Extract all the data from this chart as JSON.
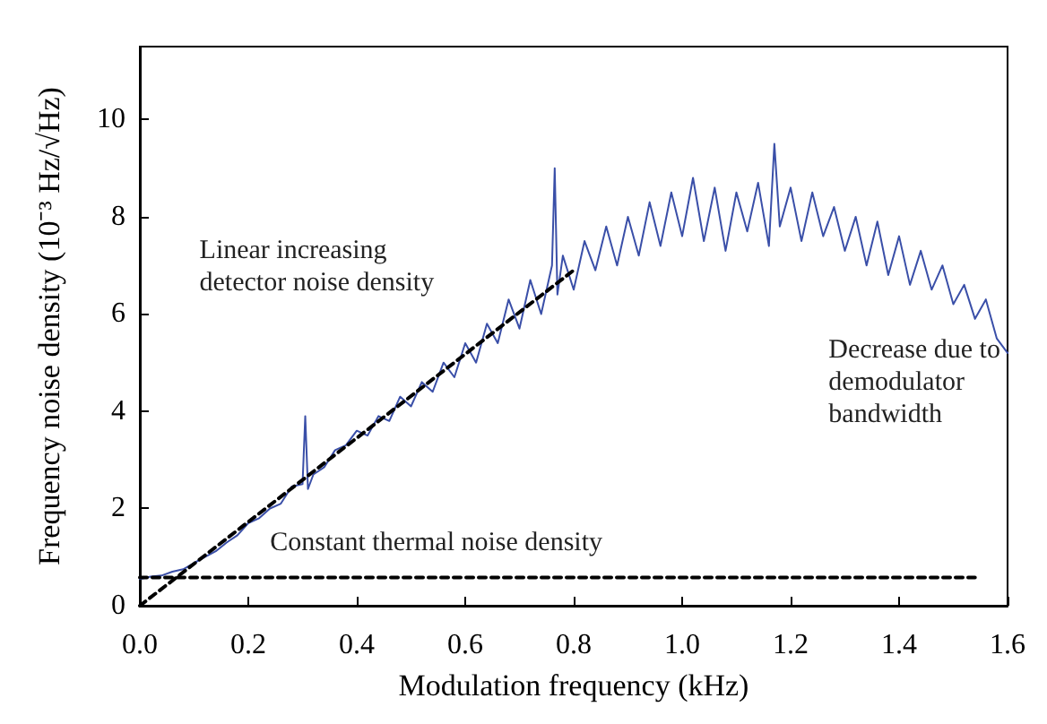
{
  "chart_data": {
    "type": "line",
    "xlabel": "Modulation frequency (kHz)",
    "ylabel": "Frequency noise density (10⁻³ Hz/√Hz)",
    "xlim": [
      0,
      1.6
    ],
    "xticks": [
      {
        "value": 0,
        "label": "0.0"
      },
      0.2,
      0.4,
      0.6,
      0.8,
      {
        "value": 1,
        "label": "1.0"
      },
      1.2,
      1.4,
      1.6
    ],
    "ylim": [
      0,
      11.5
    ],
    "yticks": [
      0,
      2,
      4,
      6,
      8,
      10
    ],
    "grid": false,
    "marker": "none",
    "series": [
      {
        "color": "#3a4fa8",
        "line_style": "solid",
        "x": [
          0,
          0.02,
          0.04,
          0.06,
          0.08,
          0.1,
          0.12,
          0.14,
          0.16,
          0.18,
          0.2,
          0.22,
          0.24,
          0.26,
          0.28,
          0.3,
          0.305,
          0.31,
          0.32,
          0.34,
          0.36,
          0.38,
          0.4,
          0.42,
          0.44,
          0.46,
          0.48,
          0.5,
          0.52,
          0.54,
          0.56,
          0.58,
          0.6,
          0.62,
          0.64,
          0.66,
          0.68,
          0.7,
          0.72,
          0.74,
          0.76,
          0.765,
          0.77,
          0.78,
          0.8,
          0.82,
          0.84,
          0.86,
          0.88,
          0.9,
          0.92,
          0.94,
          0.96,
          0.98,
          1,
          1.02,
          1.04,
          1.06,
          1.08,
          1.1,
          1.12,
          1.14,
          1.16,
          1.17,
          1.18,
          1.2,
          1.22,
          1.24,
          1.26,
          1.28,
          1.3,
          1.32,
          1.34,
          1.36,
          1.38,
          1.4,
          1.42,
          1.44,
          1.46,
          1.48,
          1.5,
          1.52,
          1.54,
          1.56,
          1.58,
          1.6
        ],
        "values": [
          0.55,
          0.6,
          0.62,
          0.7,
          0.75,
          0.88,
          1.0,
          1.12,
          1.3,
          1.45,
          1.7,
          1.8,
          2.0,
          2.1,
          2.45,
          2.5,
          3.9,
          2.4,
          2.7,
          2.85,
          3.2,
          3.3,
          3.6,
          3.5,
          3.9,
          3.8,
          4.3,
          4.1,
          4.6,
          4.4,
          5.0,
          4.7,
          5.4,
          5.0,
          5.8,
          5.4,
          6.3,
          5.7,
          6.7,
          6.0,
          7.0,
          9.0,
          6.4,
          7.2,
          6.5,
          7.5,
          6.9,
          7.8,
          7.0,
          8.0,
          7.2,
          8.3,
          7.4,
          8.5,
          7.6,
          8.8,
          7.5,
          8.6,
          7.3,
          8.5,
          7.7,
          8.7,
          7.4,
          9.5,
          7.8,
          8.6,
          7.5,
          8.5,
          7.6,
          8.2,
          7.3,
          8.0,
          7.0,
          7.9,
          6.8,
          7.6,
          6.6,
          7.3,
          6.5,
          7.0,
          6.2,
          6.6,
          5.9,
          6.3,
          5.5,
          5.2
        ]
      },
      {
        "color": "#000000",
        "line_style": "dashed",
        "x": [
          0,
          0.8
        ],
        "values": [
          0,
          6.9
        ]
      },
      {
        "color": "#000000",
        "line_style": "dashed",
        "x": [
          0,
          1.54
        ],
        "values": [
          0.58,
          0.58
        ]
      }
    ],
    "annotations": [
      "Linear increasing\ndetector noise density",
      "Constant thermal noise density",
      "Decrease due to\ndemodulator\nbandwidth"
    ]
  }
}
